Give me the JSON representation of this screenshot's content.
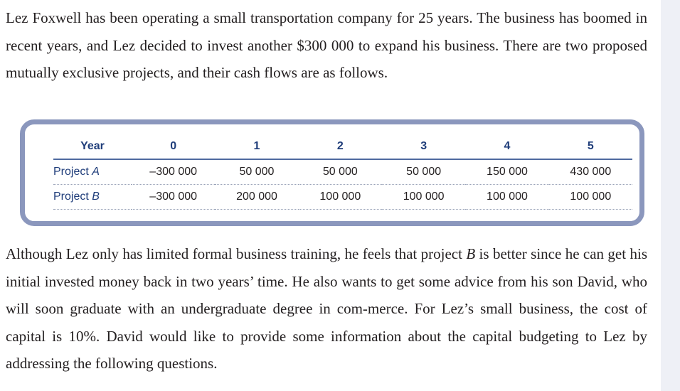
{
  "paragraph_1": "Lez Foxwell has been operating a small transportation company for 25 years. The business has boomed in recent years, and Lez decided to invest another $300 000 to expand his business. There are two proposed mutually exclusive projects, and their cash flows are as follows.",
  "table": {
    "header_label": "Year",
    "years": [
      "0",
      "1",
      "2",
      "3",
      "4",
      "5"
    ],
    "rows": [
      {
        "label_prefix": "Project ",
        "label_letter": "A",
        "values": [
          "–300 000",
          "50 000",
          "50 000",
          "50 000",
          "150 000",
          "430 000"
        ]
      },
      {
        "label_prefix": "Project ",
        "label_letter": "B",
        "values": [
          "–300 000",
          "200 000",
          "100 000",
          "100 000",
          "100 000",
          "100 000"
        ]
      }
    ]
  },
  "paragraph_2": {
    "before_var": "Although Lez only has limited formal business training, he feels that project ",
    "var": "B",
    "after_var": " is better since he can get his initial invested money back in two years’ time. He also wants to get some advice from his son David, who will soon graduate with an undergraduate degree in com-merce. For Lez’s small business, the cost of capital is 10%. David would like to provide some information about the capital budgeting to Lez by addressing the following questions."
  }
}
